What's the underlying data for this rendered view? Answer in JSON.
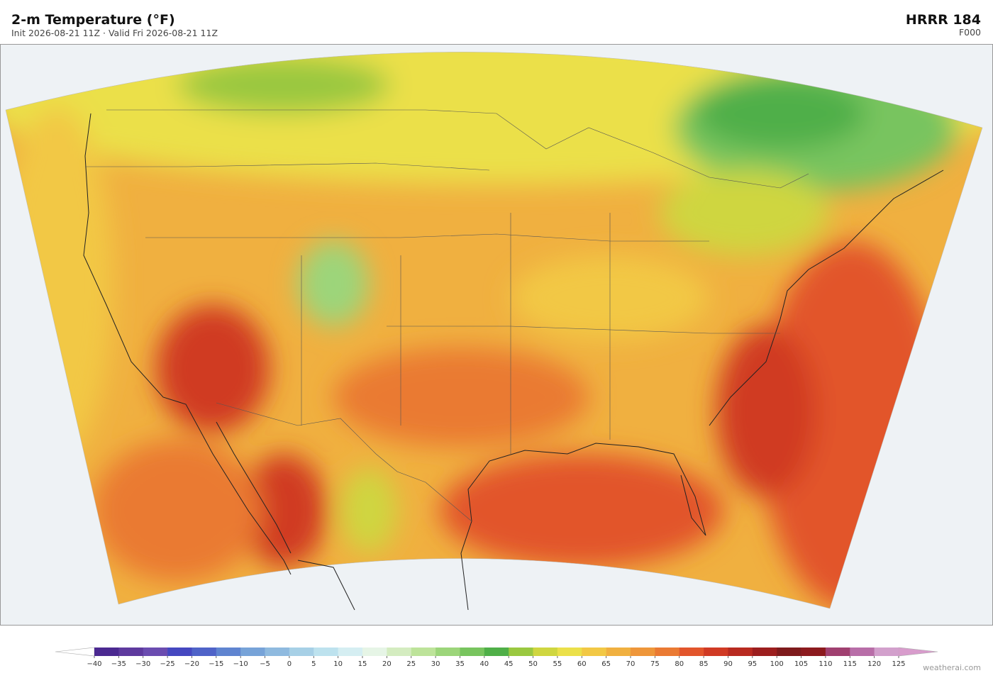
{
  "header": {
    "title": "2-m Temperature  (°F)",
    "subtitle": "Init 2026-08-21 11Z  ·  Valid Fri 2026-08-21 11Z",
    "model": "HRRR  184",
    "forecast_hour": "F000"
  },
  "colorbar": {
    "ticks": [
      {
        "value": -40,
        "label": "−40"
      },
      {
        "value": -35,
        "label": "−35"
      },
      {
        "value": -30,
        "label": "−30"
      },
      {
        "value": -25,
        "label": "−25"
      },
      {
        "value": -20,
        "label": "−20"
      },
      {
        "value": -15,
        "label": "−15"
      },
      {
        "value": -10,
        "label": "−10"
      },
      {
        "value": -5,
        "label": "−5"
      },
      0,
      5,
      10,
      15,
      20,
      25,
      30,
      35,
      40,
      45,
      50,
      55,
      60,
      65,
      70,
      75,
      80,
      85,
      90,
      95,
      100,
      105,
      110,
      115,
      120,
      125
    ],
    "colors": [
      "#4b2991",
      "#5e3a9e",
      "#6b4cb0",
      "#4548c0",
      "#4f63c8",
      "#5f84d0",
      "#77a3d8",
      "#8fbadf",
      "#a7d0e6",
      "#bde2ee",
      "#d5eef2",
      "#e6f5e6",
      "#d4ecc0",
      "#bde39a",
      "#9cd57a",
      "#78c45e",
      "#4faf48",
      "#9ac840",
      "#cfd640",
      "#ebe04a",
      "#f2c845",
      "#f0b040",
      "#ee963a",
      "#ea7a33",
      "#e2552c",
      "#d03a24",
      "#b82a20",
      "#9c1e1e",
      "#7e1a1c",
      "#8c1a1e",
      "#a04070",
      "#b86ea8",
      "#d2a0cc"
    ],
    "under_color": "#ffffff",
    "over_color": "#d89ccc"
  },
  "credit": "weatherai.com"
}
